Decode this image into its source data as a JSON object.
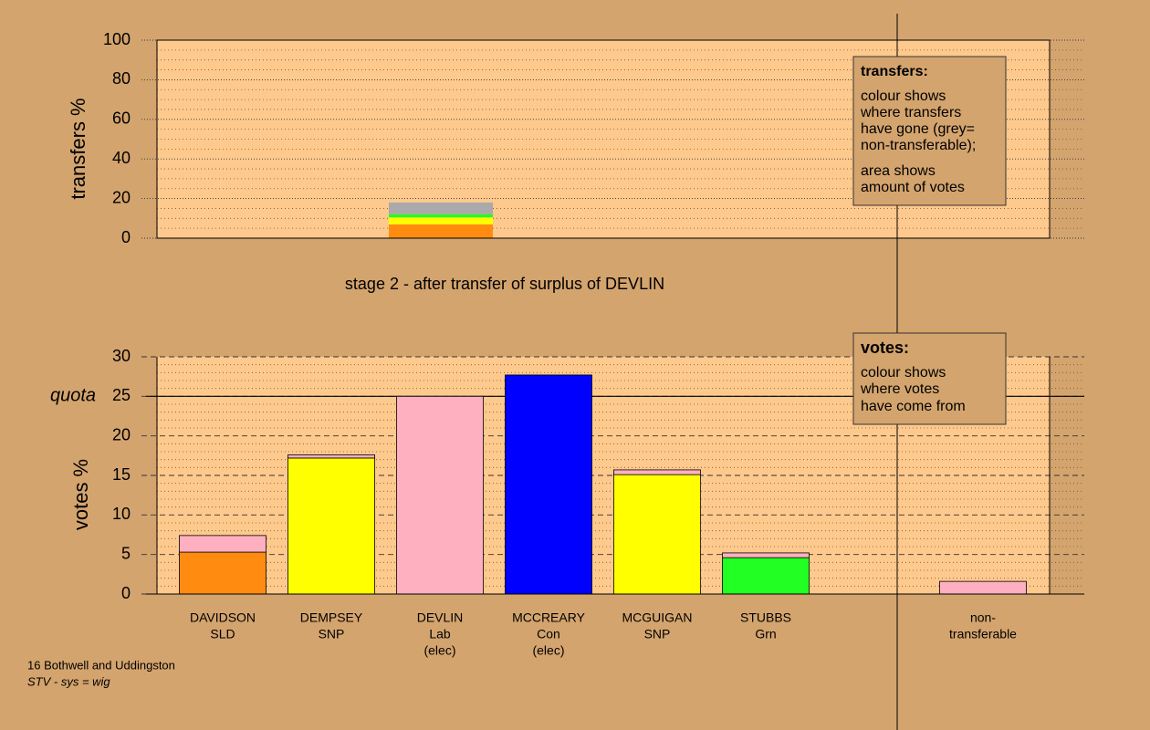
{
  "chart_data": [
    {
      "type": "bar",
      "stacked": true,
      "ylabel": "transfers %",
      "ylim": [
        0,
        100
      ],
      "yticks": [
        0,
        20,
        40,
        60,
        80,
        100
      ],
      "minor_grid_step": 5,
      "series": [
        {
          "color": "#ff8c10",
          "values": [
            7
          ]
        },
        {
          "color": "#ffff00",
          "values": [
            3.5
          ]
        },
        {
          "color": "#22ff22",
          "values": [
            1.5
          ]
        },
        {
          "color": "#aaaaaa",
          "values": [
            6
          ]
        }
      ],
      "note": {
        "title": "transfers:",
        "lines": [
          "colour shows",
          "where transfers",
          "have gone (grey=",
          "non-transferable);",
          "area shows",
          "amount of votes"
        ]
      }
    },
    {
      "type": "bar",
      "stacked": true,
      "title": "stage 2 - after transfer of surplus of DEVLIN",
      "ylabel": "votes %",
      "ylim": [
        0,
        30
      ],
      "yticks": [
        0,
        5,
        10,
        15,
        20,
        25,
        30
      ],
      "minor_grid_step": 1,
      "quota": {
        "label": "quota",
        "value": 25
      },
      "categories": [
        [
          "DAVIDSON",
          "SLD"
        ],
        [
          "DEMPSEY",
          "SNP"
        ],
        [
          "DEVLIN",
          "Lab",
          "(elec)"
        ],
        [
          "MCCREARY",
          "Con",
          "(elec)"
        ],
        [
          "MCGUIGAN",
          "SNP"
        ],
        [
          "STUBBS",
          "Grn"
        ],
        null,
        [
          "non-",
          "transferable"
        ]
      ],
      "series": [
        {
          "color": "#ff8c10",
          "values": [
            5.3,
            null,
            null,
            null,
            null,
            null,
            null,
            null
          ]
        },
        {
          "color": "#ffff00",
          "values": [
            null,
            17.2,
            null,
            null,
            15.1,
            null,
            null,
            null
          ]
        },
        {
          "color": "#22ff22",
          "values": [
            null,
            null,
            null,
            null,
            null,
            4.6,
            null,
            null
          ]
        },
        {
          "color": "#0000ff",
          "values": [
            null,
            null,
            null,
            27.7,
            null,
            null,
            null,
            null
          ]
        },
        {
          "color": "#ffb0c0",
          "values": [
            2.1,
            0.4,
            25,
            null,
            0.6,
            0.6,
            null,
            1.6
          ]
        }
      ],
      "note": {
        "title": "votes:",
        "lines": [
          "colour shows",
          "where votes",
          "have come from"
        ]
      }
    }
  ],
  "footer": {
    "line1": "16 Bothwell and Uddingston",
    "line2": "STV - sys = wig"
  }
}
